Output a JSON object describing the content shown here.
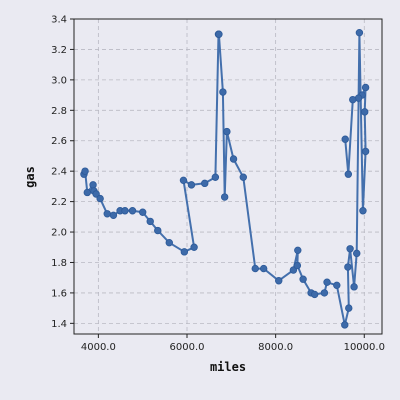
{
  "chart_data": {
    "type": "line",
    "xlabel": "miles",
    "ylabel": "gas",
    "xlim": [
      3450,
      10400
    ],
    "ylim": [
      1.33,
      3.4
    ],
    "xticks": [
      4000,
      6000,
      8000,
      10000
    ],
    "xtick_labels": [
      "4000.0",
      "6000.0",
      "8000.0",
      "10000.0"
    ],
    "yticks": [
      1.4,
      1.6,
      1.8,
      2.0,
      2.2,
      2.4,
      2.6,
      2.8,
      3.0,
      3.2,
      3.4
    ],
    "ytick_labels": [
      "1.4",
      "1.6",
      "1.8",
      "2.0",
      "2.2",
      "2.4",
      "2.6",
      "2.8",
      "3.0",
      "3.2",
      "3.4"
    ],
    "grid": true,
    "color": "#4470ad",
    "x": [
      3675,
      3700,
      3750,
      3880,
      3900,
      3950,
      4040,
      4200,
      4340,
      4490,
      4600,
      4770,
      5000,
      5170,
      5340,
      5600,
      5940,
      6160,
      5920,
      6100,
      6400,
      6640,
      6710,
      6720,
      6810,
      6850,
      6900,
      7050,
      7270,
      7540,
      7730,
      8070,
      8400,
      8500,
      8490,
      8620,
      8800,
      8880,
      9100,
      9160,
      9380,
      9560,
      9650,
      9630,
      9680,
      9770,
      9830,
      9890,
      9970,
      10030,
      10010,
      10030,
      9950,
      9870,
      9740,
      9640,
      9570
    ],
    "y": [
      2.38,
      2.4,
      2.26,
      2.31,
      2.27,
      2.25,
      2.22,
      2.12,
      2.11,
      2.14,
      2.14,
      2.14,
      2.13,
      2.07,
      2.01,
      1.93,
      1.87,
      1.9,
      2.34,
      2.31,
      2.32,
      2.36,
      3.3,
      3.3,
      2.92,
      2.23,
      2.66,
      2.48,
      2.36,
      1.76,
      1.76,
      1.68,
      1.75,
      1.88,
      1.78,
      1.69,
      1.6,
      1.59,
      1.6,
      1.67,
      1.65,
      1.39,
      1.5,
      1.77,
      1.89,
      1.64,
      1.86,
      3.31,
      2.14,
      2.53,
      2.79,
      2.95,
      2.9,
      2.88,
      2.87,
      2.38,
      2.61
    ]
  }
}
